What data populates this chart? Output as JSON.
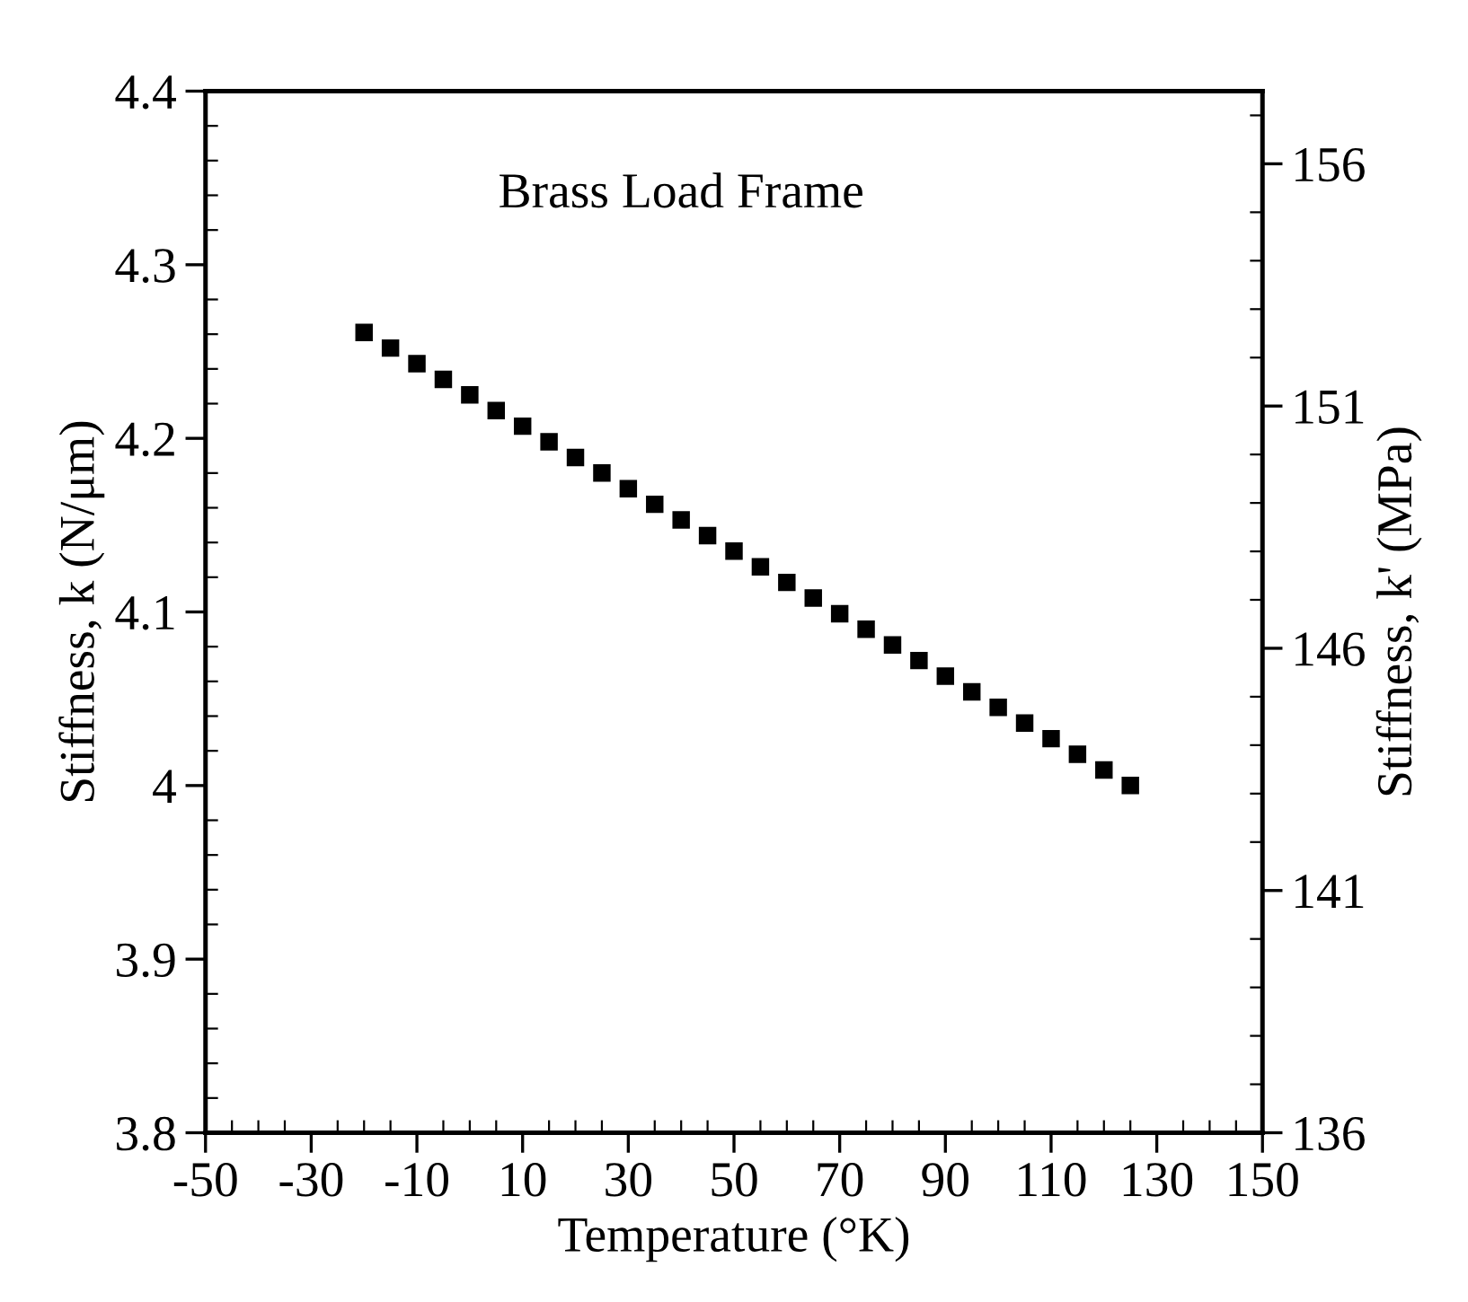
{
  "chart_data": {
    "type": "scatter",
    "xlabel": "Temperature (°K)",
    "ylabel": "Stiffness, k (N/μm)",
    "y2label": "Stiffness, k' (MPa)",
    "annotations": [
      "Brass Load Frame"
    ],
    "x": [
      -20,
      -15,
      -10,
      -5,
      0,
      5,
      10,
      15,
      20,
      25,
      30,
      35,
      40,
      45,
      50,
      55,
      60,
      65,
      70,
      75,
      80,
      85,
      90,
      95,
      100,
      105,
      110,
      115,
      120,
      125
    ],
    "series": [
      {
        "color": "#000000",
        "values": [
          4.261,
          4.252,
          4.243,
          4.234,
          4.225,
          4.216,
          4.207,
          4.198,
          4.189,
          4.18,
          4.171,
          4.162,
          4.153,
          4.144,
          4.135,
          4.126,
          4.117,
          4.108,
          4.099,
          4.09,
          4.081,
          4.072,
          4.063,
          4.054,
          4.045,
          4.036,
          4.027,
          4.018,
          4.009,
          4.0
        ]
      }
    ],
    "xlim": [
      -50,
      150
    ],
    "xticks": [
      -50,
      -30,
      -10,
      10,
      30,
      50,
      70,
      90,
      110,
      130,
      150
    ],
    "ylim": [
      3.8,
      4.4
    ],
    "yticks": [
      {
        "value": 3.8,
        "label": "3.8"
      },
      {
        "value": 3.9,
        "label": "3.9"
      },
      {
        "value": 4.0,
        "label": "4"
      },
      {
        "value": 4.1,
        "label": "4.1"
      },
      {
        "value": 4.2,
        "label": "4.2"
      },
      {
        "value": 4.3,
        "label": "4.3"
      },
      {
        "value": 4.4,
        "label": "4.4"
      }
    ],
    "y2lim": [
      136,
      157.5
    ],
    "y2ticks": [
      136,
      141,
      146,
      151,
      156
    ],
    "marker": "square",
    "grid": false
  }
}
